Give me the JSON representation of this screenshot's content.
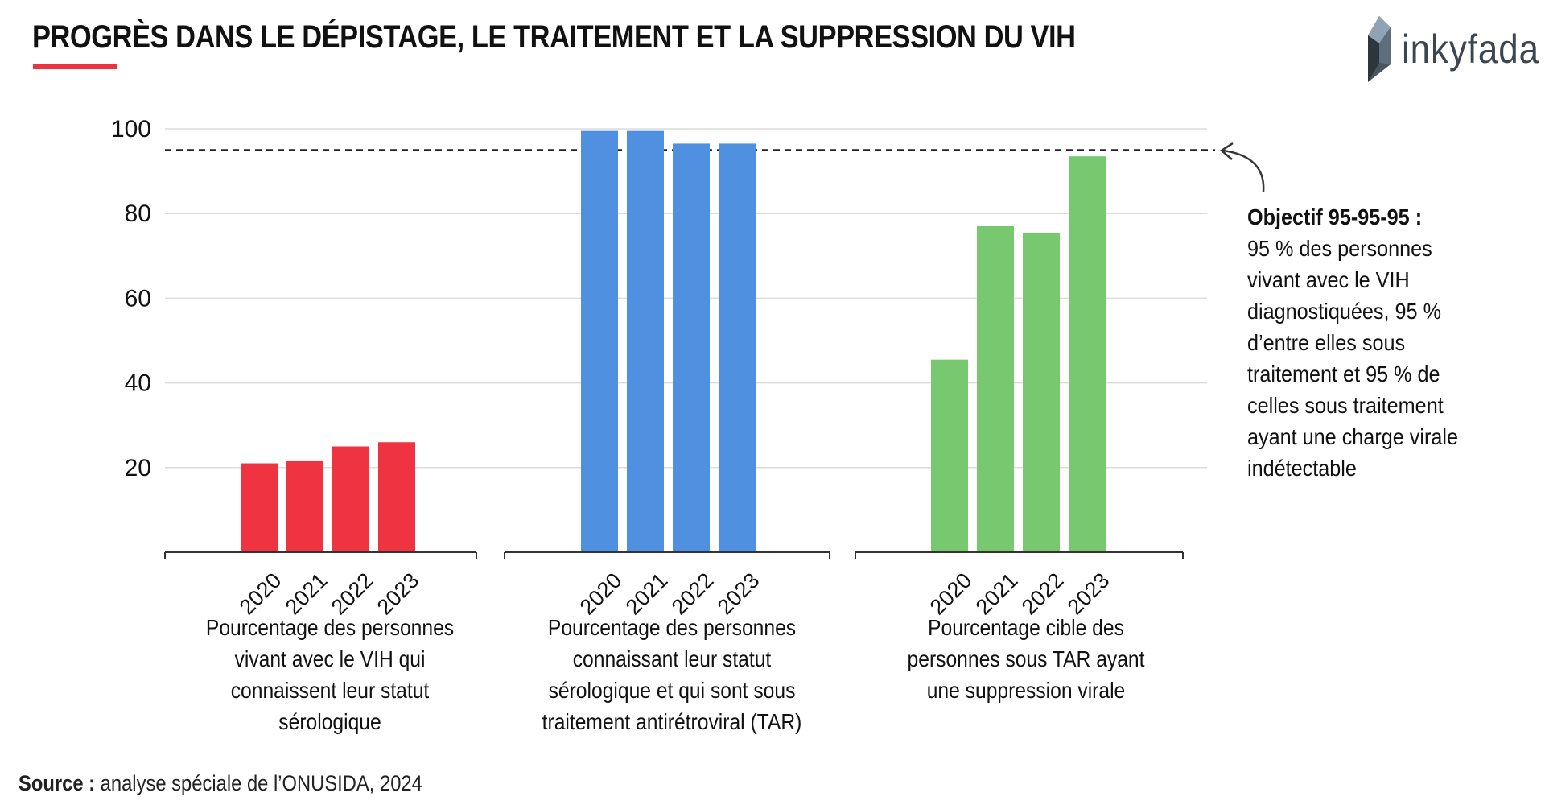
{
  "header": {
    "title": "PROGRÈS DANS LE DÉPISTAGE, LE TRAITEMENT ET LA SUPPRESSION DU VIH",
    "logo_text": "inkyfada",
    "accent_color": "#ec3340"
  },
  "annotation": {
    "title": "Objectif 95-95-95 :",
    "body": "95 % des personnes vivant avec le VIH diagnostiquées, 95 % d’entre elles sous traitement et 95 % de celles sous traitement ayant une charge virale indétectable"
  },
  "source": {
    "label": "Source :",
    "text": " analyse spéciale de l’ONUSIDA, 2024"
  },
  "chart_data": {
    "type": "bar",
    "title": "PROGRÈS DANS LE DÉPISTAGE, LE TRAITEMENT ET LA SUPPRESSION DU VIH",
    "ylim": [
      0,
      100
    ],
    "yticks": [
      20,
      40,
      60,
      80,
      100
    ],
    "grid": true,
    "target_line": 95,
    "categories": [
      "2020",
      "2021",
      "2022",
      "2023"
    ],
    "groups": [
      {
        "name": "Pourcentage des personnes vivant avec le VIH qui connaissent leur statut sérologique",
        "color": "#ef3340",
        "values": [
          21,
          21.5,
          25,
          26
        ]
      },
      {
        "name": "Pourcentage des personnes connaissant leur statut sérologique et qui sont sous traitement antirétroviral (TAR)",
        "color": "#4f90e0",
        "values": [
          99.5,
          99.5,
          96.5,
          96.5
        ]
      },
      {
        "name": "Pourcentage cible des personnes sous TAR ayant une suppression virale",
        "color": "#77c86e",
        "values": [
          45.5,
          77,
          75.5,
          93.5
        ]
      }
    ]
  }
}
